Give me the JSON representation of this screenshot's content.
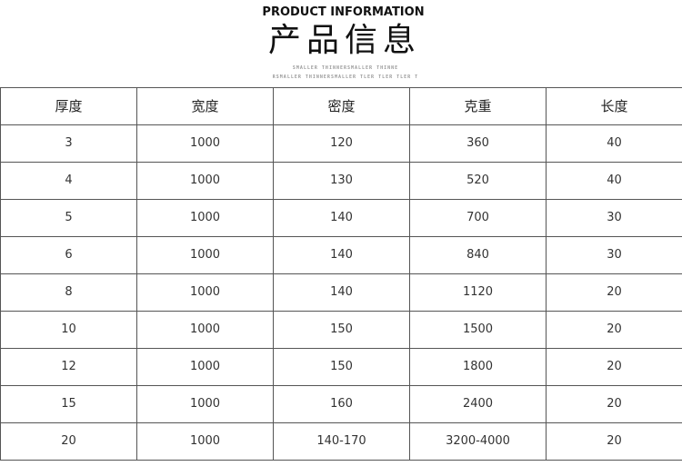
{
  "header": {
    "title_en": "PRODUCT INFORMATION",
    "title_cn": "产品信息",
    "sub1": "SMALLER THINNERSMALLER THINNE",
    "sub2": "RSMALLER THINNERSMALLER TLER TLER TLER T"
  },
  "table": {
    "columns": [
      "厚度",
      "宽度",
      "密度",
      "克重",
      "长度"
    ],
    "rows": [
      [
        "3",
        "1000",
        "120",
        "360",
        "40"
      ],
      [
        "4",
        "1000",
        "130",
        "520",
        "40"
      ],
      [
        "5",
        "1000",
        "140",
        "700",
        "30"
      ],
      [
        "6",
        "1000",
        "140",
        "840",
        "30"
      ],
      [
        "8",
        "1000",
        "140",
        "1120",
        "20"
      ],
      [
        "10",
        "1000",
        "150",
        "1500",
        "20"
      ],
      [
        "12",
        "1000",
        "150",
        "1800",
        "20"
      ],
      [
        "15",
        "1000",
        "160",
        "2400",
        "20"
      ],
      [
        "20",
        "1000",
        "140-170",
        "3200-4000",
        "20"
      ]
    ]
  }
}
